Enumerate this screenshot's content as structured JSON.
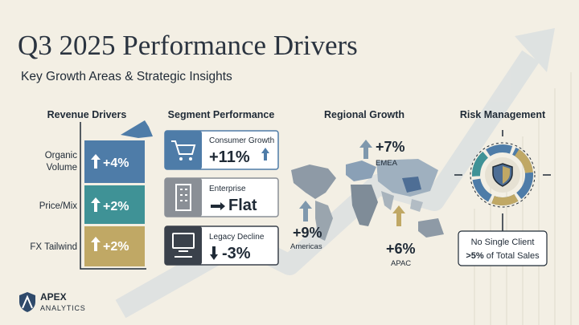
{
  "header": {
    "title": "Q3 2025 Performance Drivers",
    "subtitle": "Key Growth Areas & Strategic Insights"
  },
  "revenue_drivers": {
    "heading": "Revenue Drivers",
    "items": [
      {
        "label": [
          "Organic",
          "Volume"
        ],
        "value": "+4%"
      },
      {
        "label": [
          "Price/Mix"
        ],
        "value": "+2%"
      },
      {
        "label": [
          "FX Tailwind"
        ],
        "value": "+2%"
      }
    ]
  },
  "segment_performance": {
    "heading": "Segment Performance",
    "items": [
      {
        "label": "Consumer Growth",
        "value": "+11%"
      },
      {
        "label": "Enterprise",
        "value": "Flat"
      },
      {
        "label": "Legacy Decline",
        "value": "-3%"
      }
    ]
  },
  "regional_growth": {
    "heading": "Regional Growth",
    "items": [
      {
        "value": "+7%",
        "label": "EMEA"
      },
      {
        "value": "+9%",
        "label": "Americas"
      },
      {
        "value": "+6%",
        "label": "APAC"
      }
    ]
  },
  "risk_management": {
    "heading": "Risk Management",
    "note": [
      "No Single Client",
      ">5%",
      "of Total Sales"
    ]
  },
  "logo": {
    "name": "APEX",
    "tagline": "ANALYTICS"
  }
}
